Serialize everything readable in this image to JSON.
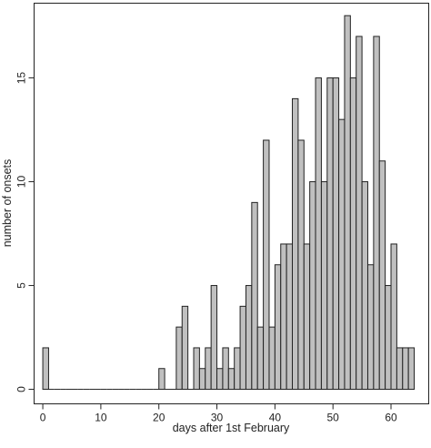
{
  "chart_data": {
    "type": "bar",
    "xlabel": "days after 1st February",
    "ylabel": "number of onsets",
    "x_ticks": [
      0,
      10,
      20,
      30,
      40,
      50,
      60
    ],
    "y_ticks": [
      0,
      5,
      10,
      15
    ],
    "xlim": [
      -1.5,
      66.5
    ],
    "ylim": [
      -0.7,
      18.6
    ],
    "bin_width": 1,
    "bins_start": [
      0,
      1,
      2,
      3,
      4,
      5,
      6,
      7,
      8,
      9,
      10,
      11,
      12,
      13,
      14,
      15,
      16,
      17,
      18,
      19,
      20,
      21,
      22,
      23,
      24,
      25,
      26,
      27,
      28,
      29,
      30,
      31,
      32,
      33,
      34,
      35,
      36,
      37,
      38,
      39,
      40,
      41,
      42,
      43,
      44,
      45,
      46,
      47,
      48,
      49,
      50,
      51,
      52,
      53,
      54,
      55,
      56,
      57,
      58,
      59,
      60,
      61,
      62,
      63
    ],
    "values": [
      2,
      0,
      0,
      0,
      0,
      0,
      0,
      0,
      0,
      0,
      0,
      0,
      0,
      0,
      0,
      0,
      0,
      0,
      0,
      0,
      1,
      0,
      0,
      3,
      4,
      0,
      2,
      1,
      2,
      5,
      1,
      2,
      1,
      2,
      4,
      5,
      9,
      3,
      12,
      3,
      6,
      7,
      7,
      14,
      12,
      7,
      10,
      15,
      10,
      15,
      15,
      13,
      18,
      15,
      17,
      10,
      6,
      17,
      11,
      5,
      7,
      2,
      2,
      2
    ],
    "bar_fill": "#c0c0c0",
    "bar_stroke": "#222222",
    "frame_color": "#222222",
    "grid": false,
    "legend": "none"
  }
}
